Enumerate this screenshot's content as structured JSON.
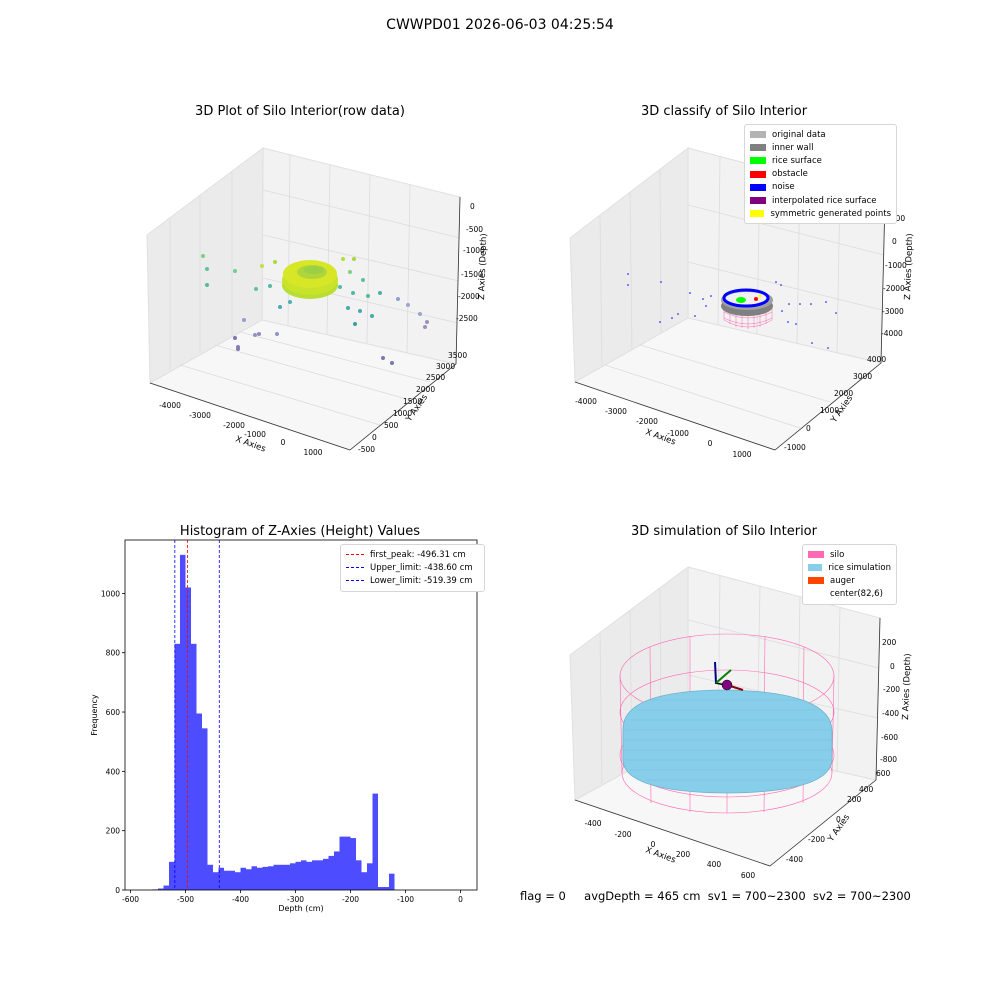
{
  "suptitle": "CWWPD01 2026-06-03 04:25:54",
  "colors": {
    "original": "#b3b3b3",
    "inner_wall": "#808080",
    "rice_surface": "#00ff00",
    "obstacle": "#ff0000",
    "noise": "#0000ff",
    "interpolated": "#800080",
    "symmetric": "#ffff00",
    "silo": "#ff69b4",
    "rice_sim": "#87ceeb",
    "auger": "#ff4500",
    "hist_bar": "#4d4dff"
  },
  "plot1": {
    "title": "3D Plot of Silo Interior(row data)",
    "x_label": "X Axies",
    "y_label": "Y Axies",
    "z_label": "Z Axies (Depth)",
    "x_ticks": [
      "-4000",
      "-3000",
      "-2000",
      "-1000",
      "0",
      "1000"
    ],
    "y_ticks": [
      "-500",
      "0",
      "500",
      "1000",
      "1500",
      "2000",
      "2500",
      "3000",
      "3500"
    ],
    "z_ticks": [
      "0",
      "-500",
      "-1000",
      "-1500",
      "-2000",
      "-2500"
    ]
  },
  "plot2": {
    "title": "3D classify of Silo Interior",
    "x_label": "X Axies",
    "y_label": "Y Axies",
    "z_label": "Z Axies (Depth)",
    "x_ticks": [
      "-4000",
      "-3000",
      "-2000",
      "-1000",
      "0",
      "1000"
    ],
    "y_ticks": [
      "-1000",
      "0",
      "1000",
      "2000",
      "3000",
      "4000"
    ],
    "z_ticks": [
      "1000",
      "0",
      "-1000",
      "-2000",
      "-3000",
      "-4000"
    ],
    "legend": [
      {
        "label": "original data",
        "color": "#b3b3b3"
      },
      {
        "label": "inner wall",
        "color": "#808080"
      },
      {
        "label": "rice surface",
        "color": "#00ff00"
      },
      {
        "label": "obstacle",
        "color": "#ff0000"
      },
      {
        "label": "noise",
        "color": "#0000ff"
      },
      {
        "label": "interpolated rice surface",
        "color": "#800080"
      },
      {
        "label": "symmetric generated points",
        "color": "#ffff00"
      }
    ]
  },
  "plot4": {
    "title": "3D simulation of Silo Interior",
    "x_label": "X Axies",
    "y_label": "Y Axies",
    "z_label": "Z Axies (Depth)",
    "x_ticks": [
      "-400",
      "-200",
      "0",
      "200",
      "400",
      "600"
    ],
    "y_ticks": [
      "-400",
      "-200",
      "0",
      "200",
      "400",
      "600"
    ],
    "z_ticks": [
      "200",
      "0",
      "-200",
      "-400",
      "-600",
      "-800"
    ],
    "legend": [
      {
        "label": "silo",
        "color": "#ff69b4"
      },
      {
        "label": "rice simulation",
        "color": "#87ceeb"
      },
      {
        "label": "auger",
        "color": "#ff4500"
      },
      {
        "label": "center(82,6)",
        "color": "none"
      }
    ]
  },
  "chart_data": [
    {
      "type": "bar",
      "title": "Histogram of Z-Axies (Height) Values",
      "xlabel": "Depth (cm)",
      "ylabel": "Frequency",
      "xlim": [
        -610,
        30
      ],
      "ylim": [
        0,
        1180
      ],
      "x_ticks": [
        -600,
        -500,
        -400,
        -300,
        -200,
        -100,
        0
      ],
      "y_ticks": [
        0,
        200,
        400,
        600,
        800,
        1000
      ],
      "bin_width": 10,
      "bin_starts": [
        -560,
        -550,
        -540,
        -530,
        -520,
        -510,
        -500,
        -490,
        -480,
        -470,
        -460,
        -450,
        -440,
        -430,
        -420,
        -410,
        -400,
        -390,
        -380,
        -370,
        -360,
        -350,
        -340,
        -330,
        -320,
        -310,
        -300,
        -290,
        -280,
        -270,
        -260,
        -250,
        -240,
        -230,
        -220,
        -210,
        -200,
        -190,
        -180,
        -170,
        -160,
        -150,
        -140,
        -130,
        -120,
        -110,
        -100,
        -90,
        -80,
        -70,
        -60,
        -50,
        -40,
        -30,
        -20,
        -10
      ],
      "values": [
        2,
        5,
        15,
        95,
        830,
        1130,
        1020,
        830,
        595,
        545,
        85,
        60,
        75,
        65,
        65,
        60,
        75,
        70,
        80,
        75,
        78,
        80,
        85,
        85,
        85,
        90,
        95,
        100,
        95,
        100,
        100,
        105,
        115,
        130,
        180,
        180,
        175,
        100,
        60,
        90,
        325,
        10,
        10,
        55,
        0,
        0,
        0,
        0,
        0,
        0,
        0,
        0,
        0,
        0,
        0,
        0
      ],
      "vlines": [
        {
          "label": "first_peak: -496.31 cm",
          "x": -496.31,
          "color": "#ff0000"
        },
        {
          "label": "Upper_limit: -438.60 cm",
          "x": -438.6,
          "color": "#0000ff"
        },
        {
          "label": "Lower_limit: -519.39 cm",
          "x": -519.39,
          "color": "#0000ff"
        }
      ],
      "legend_position": "top-right"
    }
  ],
  "footer": {
    "flag": "flag = 0",
    "avg": "avgDepth = 465 cm",
    "sv1": "sv1 = 700~2300",
    "sv2": "sv2 = 700~2300"
  }
}
